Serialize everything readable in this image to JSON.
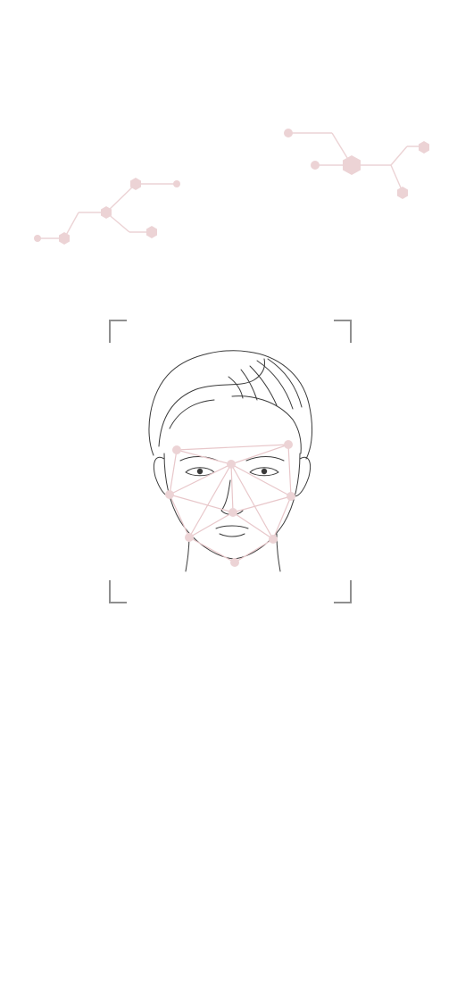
{
  "screen": {
    "name": "face-scan-onboarding",
    "background_color": "#ffffff"
  },
  "decorations": {
    "molecule_color": "#ecd3d5",
    "icons": [
      "molecule-network-icon",
      "molecule-network-icon"
    ]
  },
  "scanner": {
    "frame_color": "#8f8f8f",
    "mesh_color": "#e8c7ca",
    "line_art_color": "#3a3a3a",
    "icons": [
      "scan-corner-icon",
      "face-mesh-icon"
    ]
  }
}
